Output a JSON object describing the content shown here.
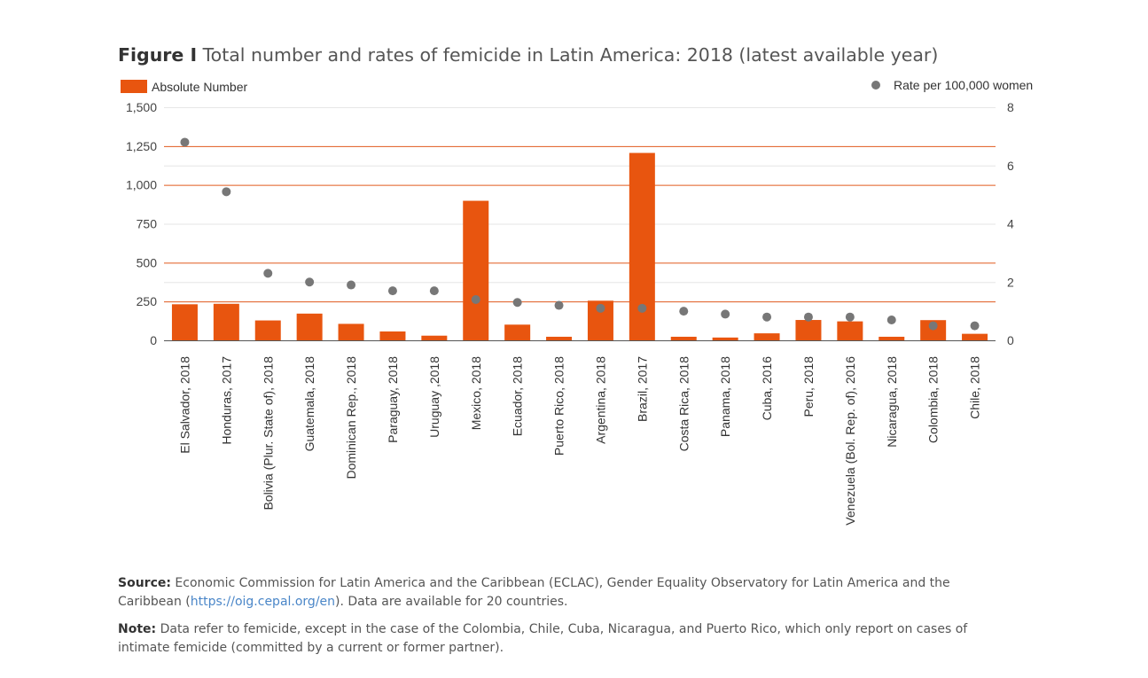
{
  "figure": {
    "label": "Figure I",
    "title": "Total number and rates of femicide in Latin America: 2018 (latest available year)"
  },
  "colors": {
    "bar": "#e8550f",
    "dot": "#777777",
    "grid": "#e05a1e",
    "axis_text": "#444444"
  },
  "chart_data": {
    "type": "bar",
    "categories": [
      "El Salvador, 2018",
      "Honduras, 2017",
      "Bolivia (Plur. State of), 2018",
      "Guatemala, 2018",
      "Dominican Rep., 2018",
      "Paraguay, 2018",
      "Uruguay ,2018",
      "Mexico, 2018",
      "Ecuador, 2018",
      "Puerto Rico, 2018",
      "Argentina, 2018",
      "Brazil, 2017",
      "Costa Rica, 2018",
      "Panama, 2018",
      "Cuba, 2016",
      "Peru, 2018",
      "Venezuela (Bol. Rep. of), 2016",
      "Nicaragua, 2018",
      "Colombia, 2018",
      "Chile, 2018"
    ],
    "series": [
      {
        "name": "Absolute Number",
        "type": "bar",
        "axis": "left",
        "values": [
          232,
          235,
          128,
          172,
          106,
          57,
          30,
          898,
          101,
          23,
          255,
          1206,
          23,
          18,
          45,
          131,
          122,
          23,
          130,
          42
        ]
      },
      {
        "name": "Rate per 100,000 women",
        "type": "scatter",
        "axis": "right",
        "values": [
          6.8,
          5.1,
          2.3,
          2.0,
          1.9,
          1.7,
          1.7,
          1.4,
          1.3,
          1.2,
          1.1,
          1.1,
          1.0,
          0.9,
          0.8,
          0.8,
          0.8,
          0.7,
          0.5,
          0.5
        ]
      }
    ],
    "y_left": {
      "ticks": [
        "0",
        "250",
        "500",
        "750",
        "1,000",
        "1,250",
        "1,500"
      ],
      "ylim": [
        0,
        1500
      ]
    },
    "y_right": {
      "ticks": [
        "0",
        "2",
        "4",
        "6",
        "8"
      ],
      "ylim": [
        0,
        8
      ]
    },
    "grid": true,
    "legend": {
      "bar": "top-left",
      "dot": "top-right"
    }
  },
  "source": {
    "label": "Source:",
    "text": "Economic Commission for Latin America and the Caribbean (ECLAC), Gender Equality Observatory for Latin America and the Caribbean",
    "paren_open": "(",
    "link": "https://oig.cepal.org/en",
    "after": "). Data are available for 20 countries."
  },
  "note": {
    "label": "Note:",
    "text": "Data refer to femicide, except in the case of the Colombia, Chile, Cuba, Nicaragua, and Puerto Rico, which only report on cases of intimate femicide (committed by a current or former partner)."
  }
}
